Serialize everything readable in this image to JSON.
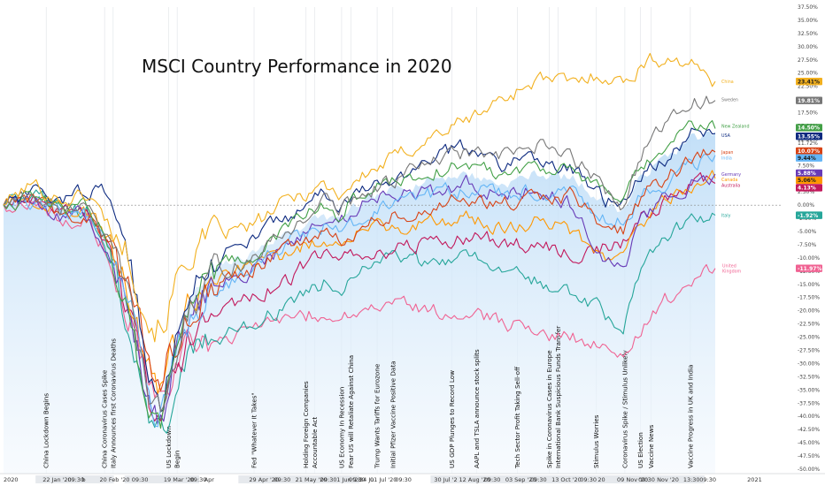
{
  "chart_data": {
    "type": "line",
    "title": "MSCI Country Performance in 2020",
    "ylim": [
      -50,
      37.5
    ],
    "ytick_values": [
      37.5,
      35,
      32.5,
      30,
      27.5,
      25,
      22.5,
      20,
      17.5,
      15,
      12.5,
      11.72,
      10,
      7.5,
      5,
      2.5,
      0,
      -2.5,
      -5,
      -7.5,
      -10,
      -12.5,
      -15,
      -17.5,
      -20,
      -22.5,
      -25,
      -27.5,
      -30,
      -32.5,
      -35,
      -37.5,
      -40,
      -42.5,
      -45,
      -47.5,
      -50
    ],
    "ytick_labels": [
      "37.50%",
      "35.00%",
      "32.50%",
      "30.00%",
      "27.50%",
      "25.00%",
      "22.50%",
      "20.00%",
      "17.50%",
      "15.00%",
      "12.50%",
      "11.72%",
      "10.00%",
      "7.50%",
      "5.00%",
      "2.50%",
      "0.00%",
      "-2.50%",
      "-5.00%",
      "-7.50%",
      "-10.00%",
      "-12.50%",
      "-15.00%",
      "-17.50%",
      "-20.00%",
      "-22.50%",
      "-25.00%",
      "-27.50%",
      "-30.00%",
      "-32.50%",
      "-35.00%",
      "-37.50%",
      "-40.00%",
      "-42.50%",
      "-45.00%",
      "-47.50%",
      "-50.00%"
    ],
    "x_labels": [
      {
        "text": "2020",
        "t": 0.0
      },
      {
        "text": "22 Jan '20",
        "t": 0.055
      },
      {
        "text": "09:30",
        "t": 0.09
      },
      {
        "text": "b",
        "t": 0.11
      },
      {
        "text": "20 Feb '20",
        "t": 0.135
      },
      {
        "text": "09:30",
        "t": 0.18
      },
      {
        "text": "19 Mar '20",
        "t": 0.225
      },
      {
        "text": "09:30",
        "t": 0.262
      },
      {
        "text": "Apr",
        "t": 0.282
      },
      {
        "text": "29 Apr '20",
        "t": 0.345
      },
      {
        "text": "09:30",
        "t": 0.38
      },
      {
        "text": "21 May '20",
        "t": 0.41
      },
      {
        "text": "09:30",
        "t": 0.445
      },
      {
        "text": "1 Jun '20",
        "t": 0.468
      },
      {
        "text": "09:30",
        "t": 0.485
      },
      {
        "text": "24 Ju",
        "t": 0.5
      },
      {
        "text": "01 Jul '20",
        "t": 0.515
      },
      {
        "text": "09:30",
        "t": 0.55
      },
      {
        "text": "30 Jul '2",
        "t": 0.605
      },
      {
        "text": "12 Aug '20",
        "t": 0.64
      },
      {
        "text": "09:30",
        "t": 0.675
      },
      {
        "text": "03 Sep '20",
        "t": 0.705
      },
      {
        "text": "09:30",
        "t": 0.74
      },
      {
        "text": "13 Oct '20",
        "t": 0.77
      },
      {
        "text": "09:30",
        "t": 0.81
      },
      {
        "text": "20",
        "t": 0.835
      },
      {
        "text": "09 Nov '20",
        "t": 0.862
      },
      {
        "text": "09:30",
        "t": 0.892
      },
      {
        "text": "Nov '20",
        "t": 0.918
      },
      {
        "text": "13:30",
        "t": 0.955
      },
      {
        "text": "09:30",
        "t": 0.978
      },
      {
        "text": "2021",
        "t": 1.045
      }
    ],
    "annotations": [
      {
        "text": "China Lockdown Begins",
        "t": 0.06
      },
      {
        "text": "China Coronavirus Cases Spike",
        "t": 0.142
      },
      {
        "text": "Italy Announces first Coronavirus Deaths",
        "t": 0.154
      },
      {
        "text": "US Lockdown",
        "t": 0.232
      },
      {
        "text": "Begin",
        "t": 0.244
      },
      {
        "text": "Fed \"Whatever It Takes\"",
        "t": 0.352
      },
      {
        "text": "Holding Foreign Companies",
        "t": 0.425
      },
      {
        "text": "Accountable Act",
        "t": 0.437
      },
      {
        "text": "US Economy In Recession",
        "t": 0.475
      },
      {
        "text": "Fear US will Retaliate Against China",
        "t": 0.488
      },
      {
        "text": "Trump Wants Tariffs for Eurozone",
        "t": 0.525
      },
      {
        "text": "Initial Pfizer Vaccine Positive Data",
        "t": 0.547
      },
      {
        "text": "US GDP Plunges to Record Low",
        "t": 0.63
      },
      {
        "text": "AAPL and TSLA announce stock splits",
        "t": 0.665
      },
      {
        "text": "Tech Sector Profit Taking Sell-off",
        "t": 0.722
      },
      {
        "text": "Spike in Coronavirus Cases in Europe",
        "t": 0.767
      },
      {
        "text": "International Bank Suspicious Funds Transfer",
        "t": 0.779
      },
      {
        "text": "Stimulus Worries",
        "t": 0.833
      },
      {
        "text": "Coronavirus Spike / Stimulus Unlikely",
        "t": 0.873
      },
      {
        "text": "US Election",
        "t": 0.895
      },
      {
        "text": "Vaccine News",
        "t": 0.91
      },
      {
        "text": "Vaccine Progress in UK and India",
        "t": 0.965
      }
    ],
    "key_times": [
      0,
      0.04,
      0.08,
      0.12,
      0.15,
      0.18,
      0.205,
      0.222,
      0.235,
      0.26,
      0.3,
      0.35,
      0.4,
      0.45,
      0.47,
      0.5,
      0.55,
      0.6,
      0.65,
      0.7,
      0.75,
      0.8,
      0.84,
      0.87,
      0.9,
      0.94,
      0.97,
      1.0
    ],
    "series": [
      {
        "name": "China",
        "color": "#f2b01e",
        "last": 23.41,
        "badge": "23.41%",
        "values": [
          0,
          4,
          1,
          2,
          -4,
          -10,
          -22,
          -23,
          -18,
          -9,
          -6,
          -4,
          1,
          4,
          2,
          5,
          9,
          13,
          16,
          20,
          24,
          23,
          25,
          23,
          27,
          28,
          26,
          23.41
        ]
      },
      {
        "name": "Sweden",
        "color": "#777777",
        "last": 19.81,
        "badge": "19.81%",
        "values": [
          0,
          2,
          -1,
          1,
          -8,
          -20,
          -38,
          -40,
          -32,
          -20,
          -13,
          -10,
          -5,
          1,
          -1,
          2,
          5,
          8,
          10,
          9,
          11,
          9,
          4,
          0,
          11,
          16,
          20,
          19.81
        ]
      },
      {
        "name": "New Zealand",
        "color": "#43a047",
        "last": 14.5,
        "badge": "14.50%",
        "values": [
          0,
          2,
          -1,
          0,
          -8,
          -22,
          -40,
          -42,
          -30,
          -18,
          -12,
          -10,
          -4,
          0,
          -2,
          2,
          5,
          6,
          8,
          6,
          8,
          6,
          3,
          1,
          7,
          12,
          15,
          14.5
        ]
      },
      {
        "name": "USA",
        "color": "#0d2a80",
        "last": 13.55,
        "badge": "13.55%",
        "values": [
          0,
          2,
          1,
          3,
          2,
          -12,
          -35,
          -38,
          -28,
          -15,
          -10,
          -6,
          -2,
          2,
          0,
          2,
          5,
          9,
          11,
          8,
          9,
          7,
          1,
          0,
          6,
          10,
          14,
          13.55
        ]
      },
      {
        "name": "Japan",
        "color": "#d84315",
        "last": 10.07,
        "badge": "10.07%",
        "values": [
          0,
          1,
          -2,
          -2,
          -8,
          -18,
          -30,
          -32,
          -28,
          -20,
          -15,
          -12,
          -8,
          -6,
          -7,
          -4,
          -2,
          0,
          1,
          0,
          1,
          2,
          -4,
          -5,
          2,
          6,
          9,
          10.07
        ]
      },
      {
        "name": "India",
        "color": "#64b5f6",
        "last": 9.44,
        "badge": "9.44%",
        "values": [
          0,
          1,
          -1,
          -2,
          -9,
          -22,
          -38,
          -40,
          -32,
          -22,
          -16,
          -12,
          -7,
          -4,
          -5,
          -3,
          0,
          2,
          3,
          2,
          3,
          2,
          -2,
          -3,
          2,
          5,
          8,
          9.44
        ]
      },
      {
        "name": "Germany",
        "color": "#673ab7",
        "last": 5.88,
        "badge": "5.88%",
        "values": [
          0,
          1,
          -2,
          -2,
          -10,
          -22,
          -38,
          -42,
          -32,
          -20,
          -14,
          -12,
          -8,
          -2,
          -3,
          0,
          3,
          2,
          4,
          2,
          3,
          0,
          -10,
          -12,
          -2,
          2,
          5,
          5.88
        ]
      },
      {
        "name": "Canada",
        "color": "#ff9800",
        "last": 5.06,
        "badge": "5.06%",
        "values": [
          0,
          1,
          -1,
          -1,
          -7,
          -18,
          -32,
          -35,
          -28,
          -20,
          -14,
          -12,
          -9,
          -6,
          -7,
          -5,
          -4,
          -3,
          -2,
          -4,
          -3,
          -5,
          -9,
          -10,
          -3,
          2,
          4,
          5.06
        ]
      },
      {
        "name": "Australia",
        "color": "#c2185b",
        "last": 4.13,
        "badge": "4.13%",
        "values": [
          0,
          1,
          -2,
          -2,
          -9,
          -22,
          -38,
          -44,
          -34,
          -26,
          -20,
          -17,
          -14,
          -9,
          -10,
          -10,
          -8,
          -7,
          -6,
          -7,
          -8,
          -9,
          -8,
          -7,
          -2,
          2,
          4,
          4.13
        ]
      },
      {
        "name": "Italy",
        "color": "#26a69a",
        "last": -1.92,
        "badge": "-1.92%",
        "values": [
          0,
          2,
          -1,
          -1,
          -10,
          -25,
          -40,
          -42,
          -38,
          -30,
          -25,
          -22,
          -19,
          -15,
          -16,
          -13,
          -10,
          -11,
          -9,
          -12,
          -14,
          -17,
          -20,
          -23,
          -10,
          -5,
          -2,
          -1.92
        ]
      },
      {
        "name": "United Kingdom",
        "color": "#f06292",
        "last": -11.97,
        "badge": "-11.97%",
        "values": [
          0,
          1,
          -2,
          -3,
          -10,
          -22,
          -34,
          -36,
          -32,
          -28,
          -25,
          -24,
          -22,
          -20,
          -21,
          -20,
          -19,
          -20,
          -20,
          -22,
          -24,
          -25,
          -26,
          -28,
          -22,
          -17,
          -13,
          -11.97
        ]
      }
    ],
    "area_values": [
      0,
      1,
      -1,
      -1,
      -8,
      -20,
      -34,
      -36,
      -28,
      -18,
      -12,
      -9,
      -5,
      -2,
      -3,
      0,
      3,
      5,
      6,
      4,
      6,
      5,
      1,
      -1,
      6,
      10,
      13,
      13
    ]
  }
}
